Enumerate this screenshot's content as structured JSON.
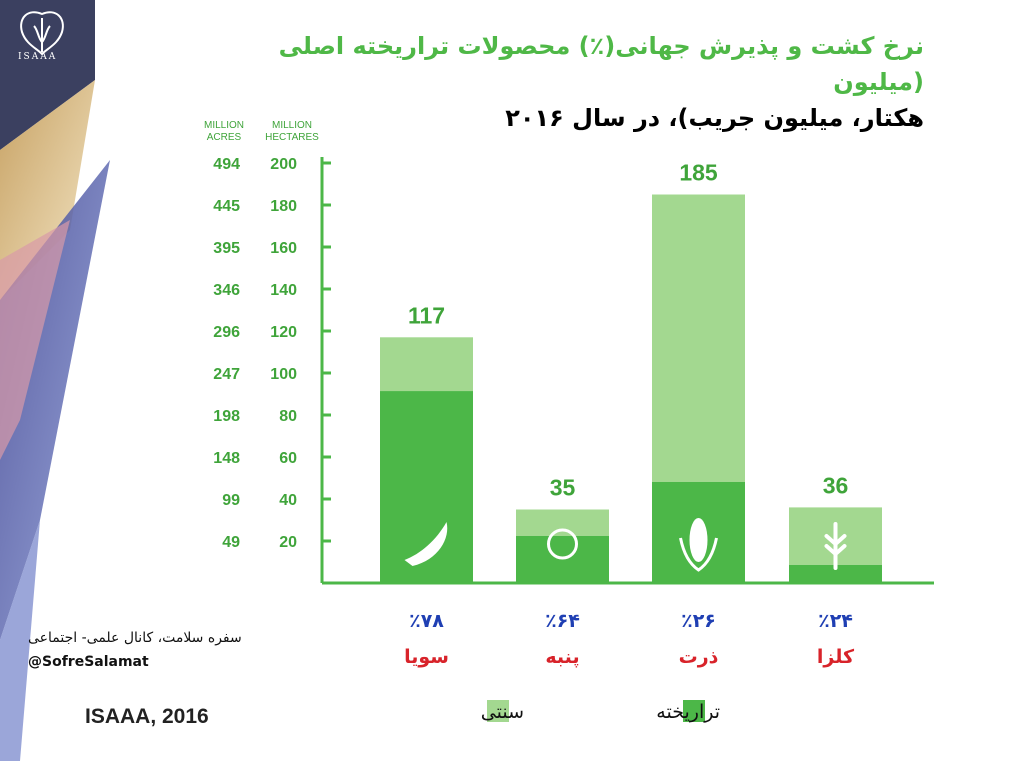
{
  "logo": {
    "text": "ISAAA"
  },
  "title": {
    "line1": "نرخ کشت و پذیرش جهانی(٪) محصولات تراریخته اصلی (میلیون",
    "line2": "هکتار، میلیون جریب)، در سال ۲۰۱۶"
  },
  "chart_data": {
    "type": "bar",
    "stacked": true,
    "axis_headers": {
      "acres": [
        "MILLION",
        "ACRES"
      ],
      "hectares": [
        "MILLION",
        "HECTARES"
      ]
    },
    "y_ticks_hectares": [
      200,
      180,
      160,
      140,
      120,
      100,
      80,
      60,
      40,
      20
    ],
    "y_ticks_acres": [
      494,
      445,
      395,
      346,
      296,
      247,
      198,
      148,
      99,
      49
    ],
    "ylim": [
      0,
      200
    ],
    "categories": [
      "سویا",
      "پنبه",
      "ذرت",
      "کلزا"
    ],
    "percent_labels": [
      "٪۷۸",
      "٪۶۴",
      "٪۲۶",
      "٪۲۴"
    ],
    "total_labels": [
      "117",
      "35",
      "185",
      "36"
    ],
    "totals": [
      117,
      35,
      185,
      36
    ],
    "series": [
      {
        "name": "تراریخته",
        "values": [
          91.4,
          22.4,
          48.1,
          8.6
        ],
        "color": "#4cb748"
      },
      {
        "name": "سنتی",
        "values": [
          25.6,
          12.6,
          136.9,
          27.4
        ],
        "color": "#a3d890"
      }
    ],
    "icons": [
      "pea-pod-icon",
      "cotton-boll-icon",
      "corn-cob-icon",
      "canola-icon"
    ],
    "legend": [
      {
        "label": "سنتی",
        "color": "#a3d890"
      },
      {
        "label": "تراریخته",
        "color": "#4cb748"
      }
    ],
    "legend_position": "bottom"
  },
  "colors": {
    "gm": "#4cb748",
    "conventional": "#a3d890",
    "percent": "#1f3fb3",
    "crop": "#d8232a",
    "axis": "#4cb748",
    "title": "#4fb847"
  },
  "footer": {
    "channel": "سفره سلامت، کانال علمی- اجتماعی",
    "handle": "@SofreSalamat",
    "source": "ISAAA, 2016"
  }
}
